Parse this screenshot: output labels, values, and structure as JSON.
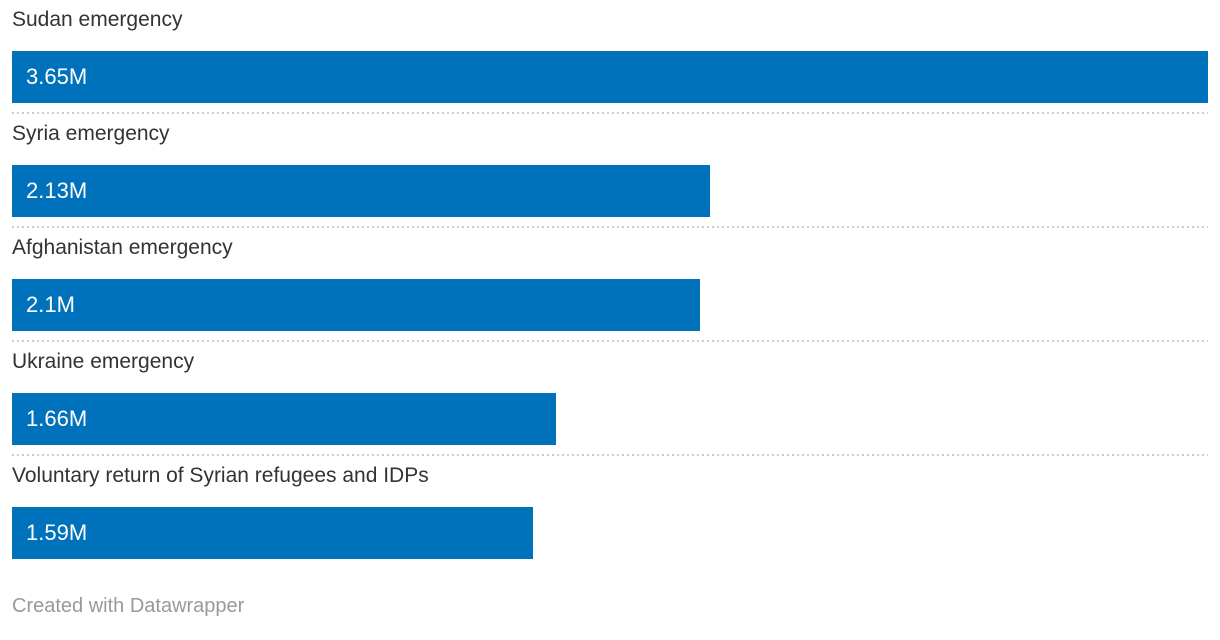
{
  "chart_data": {
    "type": "bar",
    "orientation": "horizontal",
    "categories": [
      "Sudan emergency",
      "Syria emergency",
      "Afghanistan emergency",
      "Ukraine emergency",
      "Voluntary return of Syrian refugees and IDPs"
    ],
    "values": [
      3.65,
      2.13,
      2.1,
      1.66,
      1.59
    ],
    "value_labels": [
      "3.65M",
      "2.13M",
      "2.1M",
      "1.66M",
      "1.59M"
    ],
    "max_value": 3.65,
    "title": "",
    "xlabel": "",
    "ylabel": "",
    "grid": false,
    "legend": false,
    "bar_color": "#0072bc",
    "label_color": "#333333",
    "value_text_color": "#ffffff",
    "divider_color": "#cccccc"
  },
  "footer": {
    "attribution": "Created with Datawrapper"
  }
}
